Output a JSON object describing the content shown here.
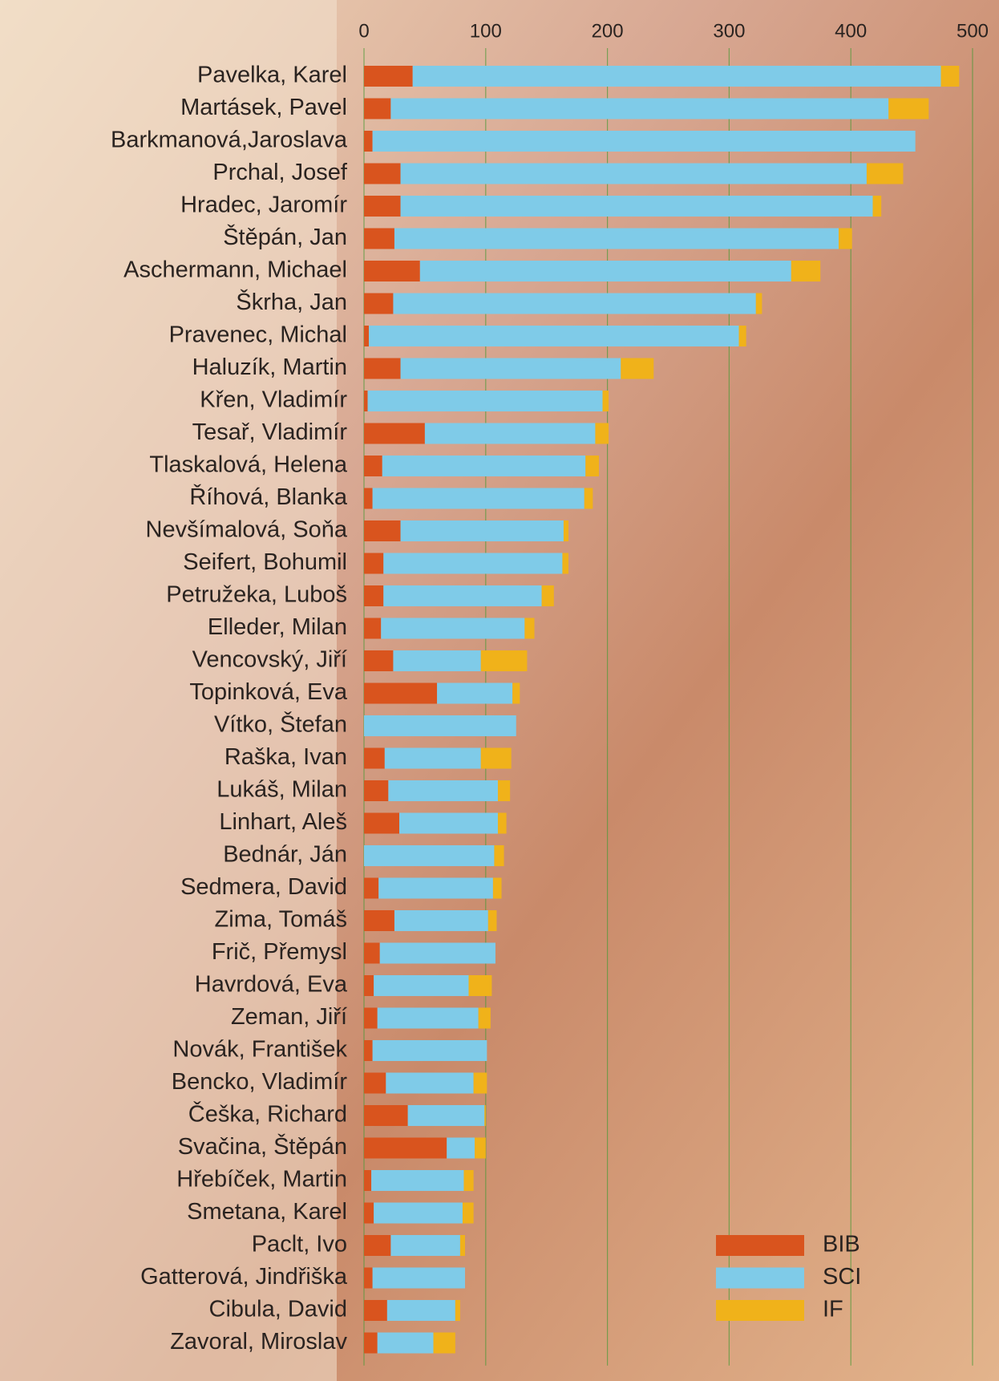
{
  "chart_data": {
    "type": "stacked-bar-horizontal",
    "categories": [
      "Pavelka, Karel",
      "Martásek, Pavel",
      "Barkmanová,Jaroslava",
      "Prchal, Josef",
      "Hradec, Jaromír",
      "Štěpán, Jan",
      "Aschermann, Michael",
      "Škrha, Jan",
      "Pravenec, Michal",
      "Haluzík, Martin",
      "Křen, Vladimír",
      "Tesař, Vladimír",
      "Tlaskalová, Helena",
      "Říhová, Blanka",
      "Nevšímalová, Soňa",
      "Seifert, Bohumil",
      "Petružeka, Luboš",
      "Elleder, Milan",
      "Vencovský, Jiří",
      "Topinková, Eva",
      "Vítko, Štefan",
      "Raška, Ivan",
      "Lukáš, Milan",
      "Linhart, Aleš",
      "Bednár, Ján",
      "Sedmera, David",
      "Zima, Tomáš",
      "Frič, Přemysl",
      "Havrdová, Eva",
      "Zeman, Jiří",
      "Novák, František",
      "Bencko, Vladimír",
      "Češka, Richard",
      "Svačina, Štěpán",
      "Hřebíček, Martin",
      "Smetana, Karel",
      "Paclt, Ivo",
      "Gatterová, Jindřiška",
      "Cibula, David",
      "Zavoral, Miroslav"
    ],
    "series": [
      {
        "name": "BIB",
        "color": "#d9541e",
        "values": [
          40,
          22,
          7,
          30,
          30,
          25,
          46,
          24,
          4,
          30,
          3,
          50,
          15,
          7,
          30,
          16,
          16,
          14,
          24,
          60,
          0,
          17,
          20,
          29,
          0,
          12,
          25,
          13,
          8,
          11,
          7,
          18,
          36,
          68,
          6,
          8,
          22,
          7,
          19,
          11
        ]
      },
      {
        "name": "SCI",
        "color": "#7fcbe8",
        "values": [
          434,
          409,
          446,
          383,
          388,
          365,
          305,
          298,
          304,
          181,
          193,
          140,
          167,
          174,
          134,
          147,
          130,
          118,
          72,
          62,
          125,
          79,
          90,
          81,
          107,
          94,
          77,
          95,
          78,
          83,
          94,
          72,
          63,
          23,
          76,
          73,
          57,
          76,
          56,
          46
        ]
      },
      {
        "name": "IF",
        "color": "#f0b21a",
        "values": [
          15,
          33,
          0,
          30,
          7,
          11,
          24,
          5,
          6,
          27,
          5,
          11,
          11,
          7,
          4,
          5,
          10,
          8,
          38,
          6,
          0,
          25,
          10,
          7,
          8,
          7,
          7,
          0,
          19,
          10,
          0,
          11,
          1,
          9,
          8,
          9,
          4,
          0,
          4,
          18
        ]
      }
    ],
    "xlim": [
      0,
      500
    ],
    "xticks": [
      0,
      100,
      200,
      300,
      400,
      500
    ],
    "grid": true,
    "legend": "bottom-right"
  }
}
